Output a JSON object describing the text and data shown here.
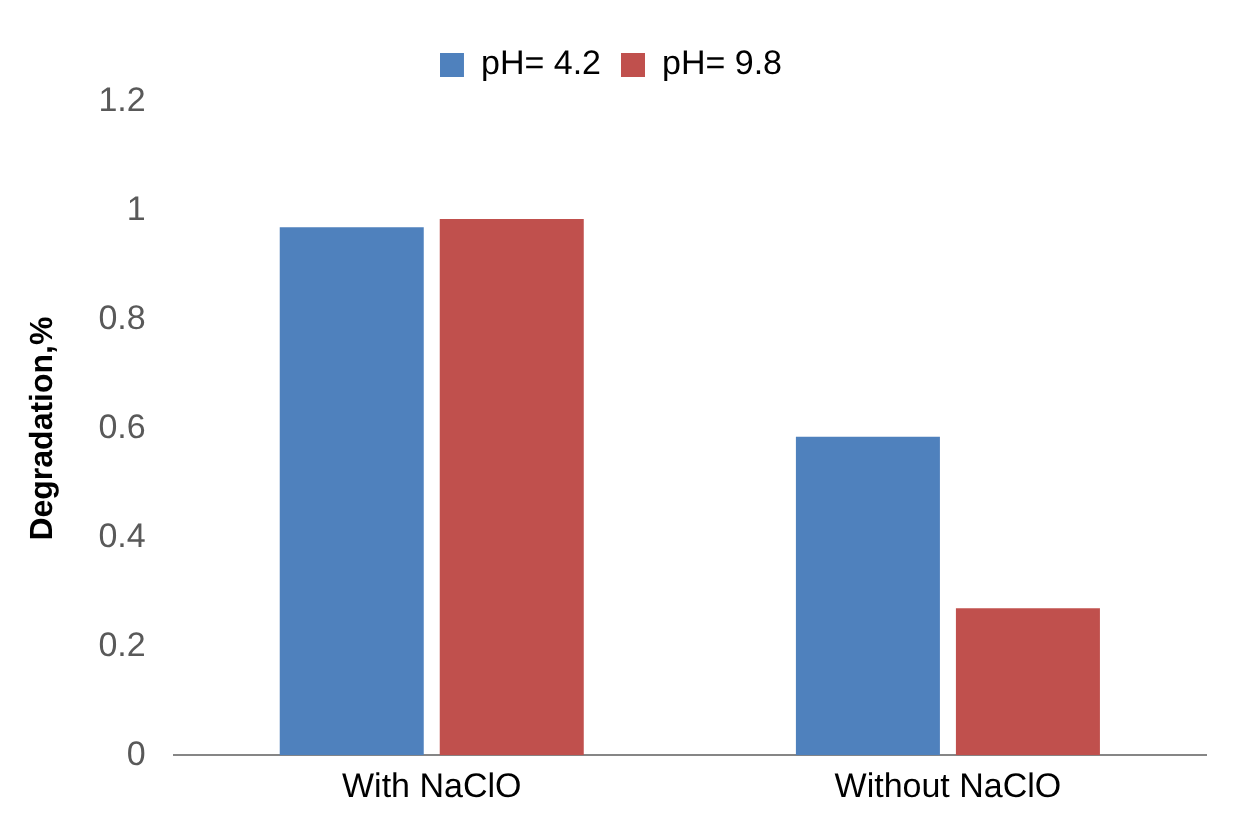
{
  "chart_data": {
    "type": "bar",
    "ylabel": "Degradation,%",
    "categories": [
      "With NaClO",
      "Without NaClO"
    ],
    "series": [
      {
        "name": "pH= 4.2",
        "color": "#4f81bd",
        "values": [
          0.97,
          0.585
        ]
      },
      {
        "name": "pH= 9.8",
        "color": "#c0504d",
        "values": [
          0.985,
          0.27
        ]
      }
    ],
    "ylim": [
      0,
      1.2
    ],
    "yticks": [
      0,
      0.2,
      0.4,
      0.6,
      0.8,
      1,
      1.2
    ],
    "grid": false,
    "legend": "top"
  }
}
